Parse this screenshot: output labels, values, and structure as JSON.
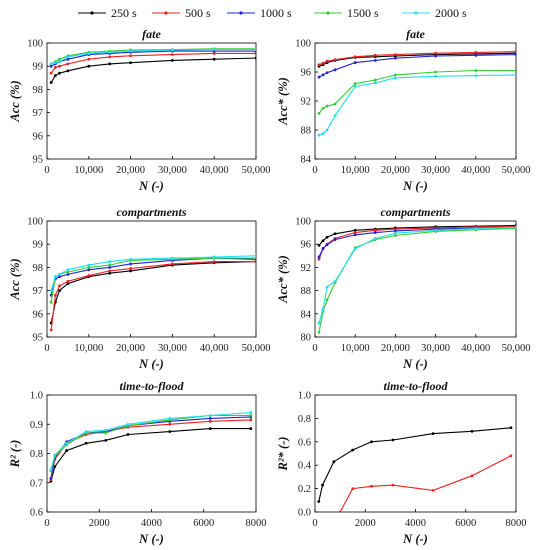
{
  "legend": {
    "placement": "top",
    "entries": [
      {
        "label": "250 s",
        "color": "#000000"
      },
      {
        "label": "500 s",
        "color": "#ee2222"
      },
      {
        "label": "1000 s",
        "color": "#2222dd"
      },
      {
        "label": "1500 s",
        "color": "#33cc33"
      },
      {
        "label": "2000 s",
        "color": "#22e0ee"
      }
    ]
  },
  "chart_data": [
    {
      "type": "line",
      "title": "fate",
      "xlabel": "N (-)",
      "ylabel": "Acc (%)",
      "xlim": [
        0,
        50000
      ],
      "ylim": [
        95,
        100
      ],
      "xticks": [
        0,
        10000,
        20000,
        30000,
        40000,
        50000
      ],
      "xtick_labels": [
        "0",
        "10,000",
        "20,000",
        "30,000",
        "40,000",
        "50,000"
      ],
      "yticks": [
        95,
        96,
        97,
        98,
        99,
        100
      ],
      "ytick_labels": [
        "95",
        "96",
        "97",
        "98",
        "99",
        "100"
      ],
      "grid": false,
      "series": [
        {
          "name": "250 s",
          "color": "#000000",
          "x": [
            1000,
            2000,
            3000,
            5000,
            10000,
            15000,
            20000,
            30000,
            40000,
            50000
          ],
          "y": [
            98.3,
            98.6,
            98.7,
            98.8,
            99.0,
            99.1,
            99.15,
            99.25,
            99.3,
            99.35
          ]
        },
        {
          "name": "500 s",
          "color": "#ee2222",
          "x": [
            1000,
            2000,
            3000,
            5000,
            10000,
            15000,
            20000,
            30000,
            40000,
            50000
          ],
          "y": [
            98.7,
            98.95,
            99.0,
            99.1,
            99.3,
            99.4,
            99.45,
            99.5,
            99.55,
            99.55
          ]
        },
        {
          "name": "1000 s",
          "color": "#2222dd",
          "x": [
            1000,
            2000,
            3000,
            5000,
            10000,
            15000,
            20000,
            30000,
            40000,
            50000
          ],
          "y": [
            99.0,
            99.1,
            99.2,
            99.3,
            99.5,
            99.55,
            99.6,
            99.65,
            99.65,
            99.65
          ]
        },
        {
          "name": "1500 s",
          "color": "#33cc33",
          "x": [
            1000,
            2000,
            3000,
            5000,
            10000,
            15000,
            20000,
            30000,
            40000,
            50000
          ],
          "y": [
            99.1,
            99.2,
            99.3,
            99.45,
            99.6,
            99.65,
            99.7,
            99.72,
            99.75,
            99.75
          ]
        },
        {
          "name": "2000 s",
          "color": "#22e0ee",
          "x": [
            1000,
            2000,
            3000,
            5000,
            10000,
            15000,
            20000,
            30000,
            40000,
            50000
          ],
          "y": [
            99.1,
            99.15,
            99.2,
            99.4,
            99.55,
            99.6,
            99.65,
            99.7,
            99.72,
            99.72
          ]
        }
      ]
    },
    {
      "type": "line",
      "title": "fate",
      "xlabel": "N (-)",
      "ylabel": "Acc* (%)",
      "xlim": [
        0,
        50000
      ],
      "ylim": [
        84,
        100
      ],
      "xticks": [
        0,
        10000,
        20000,
        30000,
        40000,
        50000
      ],
      "xtick_labels": [
        "0",
        "10,000",
        "20,000",
        "30,000",
        "40,000",
        "50,000"
      ],
      "yticks": [
        84,
        88,
        92,
        96,
        100
      ],
      "ytick_labels": [
        "84",
        "88",
        "92",
        "96",
        "100"
      ],
      "grid": false,
      "series": [
        {
          "name": "250 s",
          "color": "#000000",
          "x": [
            1000,
            2000,
            3000,
            5000,
            10000,
            15000,
            20000,
            30000,
            40000,
            50000
          ],
          "y": [
            96.8,
            97.0,
            97.3,
            97.6,
            98.0,
            98.1,
            98.2,
            98.4,
            98.5,
            98.6
          ]
        },
        {
          "name": "500 s",
          "color": "#ee2222",
          "x": [
            1000,
            2000,
            3000,
            5000,
            10000,
            15000,
            20000,
            30000,
            40000,
            50000
          ],
          "y": [
            97.0,
            97.2,
            97.5,
            97.7,
            98.1,
            98.3,
            98.4,
            98.6,
            98.7,
            98.8
          ]
        },
        {
          "name": "1000 s",
          "color": "#2222dd",
          "x": [
            1000,
            2000,
            3000,
            5000,
            10000,
            15000,
            20000,
            30000,
            40000,
            50000
          ],
          "y": [
            95.3,
            95.6,
            95.9,
            96.3,
            97.3,
            97.6,
            97.9,
            98.2,
            98.3,
            98.4
          ]
        },
        {
          "name": "1500 s",
          "color": "#33cc33",
          "x": [
            1000,
            2000,
            3000,
            5000,
            10000,
            15000,
            20000,
            30000,
            40000,
            50000
          ],
          "y": [
            90.3,
            91.0,
            91.3,
            91.6,
            94.4,
            94.9,
            95.6,
            96.0,
            96.2,
            96.2
          ]
        },
        {
          "name": "2000 s",
          "color": "#22e0ee",
          "x": [
            1000,
            2000,
            3000,
            5000,
            10000,
            15000,
            20000,
            30000,
            40000,
            50000
          ],
          "y": [
            87.3,
            87.5,
            88.0,
            90.0,
            94.0,
            94.5,
            95.2,
            95.4,
            95.5,
            95.6
          ]
        }
      ]
    },
    {
      "type": "line",
      "title": "compartments",
      "xlabel": "N (-)",
      "ylabel": "Acc (%)",
      "xlim": [
        0,
        50000
      ],
      "ylim": [
        95,
        100
      ],
      "xticks": [
        0,
        10000,
        20000,
        30000,
        40000,
        50000
      ],
      "xtick_labels": [
        "0",
        "10,000",
        "20,000",
        "30,000",
        "40,000",
        "50,000"
      ],
      "yticks": [
        95,
        96,
        97,
        98,
        99,
        100
      ],
      "ytick_labels": [
        "95",
        "96",
        "97",
        "98",
        "99",
        "100"
      ],
      "grid": false,
      "series": [
        {
          "name": "250 s",
          "color": "#000000",
          "x": [
            1000,
            2000,
            3000,
            5000,
            10000,
            15000,
            20000,
            30000,
            40000,
            50000
          ],
          "y": [
            95.6,
            96.5,
            97.0,
            97.3,
            97.6,
            97.75,
            97.85,
            98.1,
            98.2,
            98.25
          ]
        },
        {
          "name": "500 s",
          "color": "#ee2222",
          "x": [
            1000,
            2000,
            3000,
            5000,
            10000,
            15000,
            20000,
            30000,
            40000,
            50000
          ],
          "y": [
            95.3,
            96.8,
            97.2,
            97.4,
            97.65,
            97.85,
            97.95,
            98.15,
            98.25,
            98.25
          ]
        },
        {
          "name": "1000 s",
          "color": "#2222dd",
          "x": [
            1000,
            2000,
            3000,
            5000,
            10000,
            15000,
            20000,
            30000,
            40000,
            50000
          ],
          "y": [
            96.8,
            97.5,
            97.6,
            97.7,
            97.9,
            98.0,
            98.15,
            98.3,
            98.4,
            98.35
          ]
        },
        {
          "name": "1500 s",
          "color": "#33cc33",
          "x": [
            1000,
            2000,
            3000,
            5000,
            10000,
            15000,
            20000,
            30000,
            40000,
            50000
          ],
          "y": [
            96.5,
            97.6,
            97.7,
            97.8,
            98.0,
            98.1,
            98.3,
            98.35,
            98.4,
            98.4
          ]
        },
        {
          "name": "2000 s",
          "color": "#22e0ee",
          "x": [
            1000,
            2000,
            3000,
            5000,
            10000,
            15000,
            20000,
            30000,
            40000,
            50000
          ],
          "y": [
            97.0,
            97.6,
            97.7,
            97.9,
            98.1,
            98.25,
            98.35,
            98.4,
            98.45,
            98.5
          ]
        }
      ]
    },
    {
      "type": "line",
      "title": "compartments",
      "xlabel": "N (-)",
      "ylabel": "Acc* (%)",
      "xlim": [
        0,
        50000
      ],
      "ylim": [
        80,
        100
      ],
      "xticks": [
        0,
        10000,
        20000,
        30000,
        40000,
        50000
      ],
      "xtick_labels": [
        "0",
        "10,000",
        "20,000",
        "30,000",
        "40,000",
        "50,000"
      ],
      "yticks": [
        80,
        84,
        88,
        92,
        96,
        100
      ],
      "ytick_labels": [
        "80",
        "84",
        "88",
        "92",
        "96",
        "100"
      ],
      "grid": false,
      "series": [
        {
          "name": "250 s",
          "color": "#000000",
          "x": [
            1000,
            2000,
            3000,
            5000,
            10000,
            15000,
            20000,
            30000,
            40000,
            50000
          ],
          "y": [
            95.8,
            96.6,
            97.2,
            97.8,
            98.4,
            98.6,
            98.8,
            99.0,
            99.1,
            99.2
          ]
        },
        {
          "name": "500 s",
          "color": "#ee2222",
          "x": [
            1000,
            2000,
            3000,
            5000,
            10000,
            15000,
            20000,
            30000,
            40000,
            50000
          ],
          "y": [
            93.4,
            95.2,
            96.0,
            97.0,
            98.0,
            98.4,
            98.6,
            98.8,
            99.0,
            99.0
          ]
        },
        {
          "name": "1000 s",
          "color": "#2222dd",
          "x": [
            1000,
            2000,
            3000,
            5000,
            10000,
            15000,
            20000,
            30000,
            40000,
            50000
          ],
          "y": [
            93.8,
            95.3,
            95.9,
            96.8,
            97.6,
            98.0,
            98.3,
            98.6,
            98.8,
            98.9
          ]
        },
        {
          "name": "1500 s",
          "color": "#33cc33",
          "x": [
            1000,
            2000,
            3000,
            5000,
            10000,
            15000,
            20000,
            30000,
            40000,
            50000
          ],
          "y": [
            80.8,
            84.4,
            86.4,
            89.4,
            95.4,
            96.8,
            97.5,
            98.2,
            98.5,
            98.7
          ]
        },
        {
          "name": "2000 s",
          "color": "#22e0ee",
          "x": [
            1000,
            2000,
            3000,
            5000,
            10000,
            15000,
            20000,
            30000,
            40000,
            50000
          ],
          "y": [
            82.4,
            84.8,
            88.6,
            89.6,
            95.2,
            97.0,
            97.9,
            98.4,
            98.7,
            98.9
          ]
        }
      ]
    },
    {
      "type": "line",
      "title": "time-to-flood",
      "xlabel": "N (-)",
      "ylabel": "R² (-)",
      "xlim": [
        0,
        8000
      ],
      "ylim": [
        0.6,
        1.0
      ],
      "xticks": [
        0,
        2000,
        4000,
        6000,
        8000
      ],
      "xtick_labels": [
        "0",
        "2000",
        "4000",
        "6000",
        "8000"
      ],
      "yticks": [
        0.6,
        0.7,
        0.8,
        0.9,
        1.0
      ],
      "ytick_labels": [
        "0.6",
        "0.7",
        "0.8",
        "0.9",
        "1.0"
      ],
      "grid": false,
      "series": [
        {
          "name": "250 s",
          "color": "#000000",
          "x": [
            150,
            300,
            750,
            1500,
            2250,
            3100,
            4700,
            6250,
            7800
          ],
          "y": [
            0.705,
            0.755,
            0.81,
            0.835,
            0.845,
            0.865,
            0.875,
            0.885,
            0.885
          ]
        },
        {
          "name": "500 s",
          "color": "#ee2222",
          "x": [
            150,
            300,
            750,
            1500,
            2250,
            3100,
            4700,
            6250,
            7800
          ],
          "y": [
            0.71,
            0.78,
            0.835,
            0.865,
            0.875,
            0.89,
            0.9,
            0.91,
            0.915
          ]
        },
        {
          "name": "1000 s",
          "color": "#2222dd",
          "x": [
            150,
            300,
            750,
            1500,
            2250,
            3100,
            4700,
            6250,
            7800
          ],
          "y": [
            0.715,
            0.785,
            0.84,
            0.87,
            0.875,
            0.895,
            0.91,
            0.92,
            0.925
          ]
        },
        {
          "name": "1500 s",
          "color": "#33cc33",
          "x": [
            150,
            300,
            750,
            1500,
            2250,
            3100,
            4700,
            6250,
            7800
          ],
          "y": [
            0.74,
            0.79,
            0.83,
            0.87,
            0.87,
            0.895,
            0.915,
            0.93,
            0.93
          ]
        },
        {
          "name": "2000 s",
          "color": "#22e0ee",
          "x": [
            150,
            300,
            750,
            1500,
            2250,
            3100,
            4700,
            6250,
            7800
          ],
          "y": [
            0.745,
            0.795,
            0.835,
            0.875,
            0.88,
            0.9,
            0.92,
            0.93,
            0.94
          ]
        }
      ]
    },
    {
      "type": "line",
      "title": "time-to-flood",
      "xlabel": "N (-)",
      "ylabel": "R²* (-)",
      "xlim": [
        0,
        8000
      ],
      "ylim": [
        0.0,
        1.0
      ],
      "xticks": [
        0,
        2000,
        4000,
        6000,
        8000
      ],
      "xtick_labels": [
        "0",
        "2000",
        "4000",
        "6000",
        "8000"
      ],
      "yticks": [
        0.0,
        0.2,
        0.4,
        0.6,
        0.8,
        1.0
      ],
      "ytick_labels": [
        "0.0",
        "0.2",
        "0.4",
        "0.6",
        "0.8",
        "1.0"
      ],
      "grid": false,
      "series": [
        {
          "name": "250 s",
          "color": "#000000",
          "x": [
            150,
            300,
            750,
            1500,
            2250,
            3100,
            4700,
            6250,
            7800
          ],
          "y": [
            0.09,
            0.23,
            0.43,
            0.53,
            0.6,
            0.615,
            0.67,
            0.69,
            0.72
          ]
        },
        {
          "name": "500 s",
          "color": "#ee2222",
          "x": [
            1000,
            1500,
            2250,
            3100,
            4700,
            6250,
            7800
          ],
          "y": [
            0.0,
            0.2,
            0.22,
            0.23,
            0.185,
            0.31,
            0.48
          ]
        }
      ]
    }
  ]
}
